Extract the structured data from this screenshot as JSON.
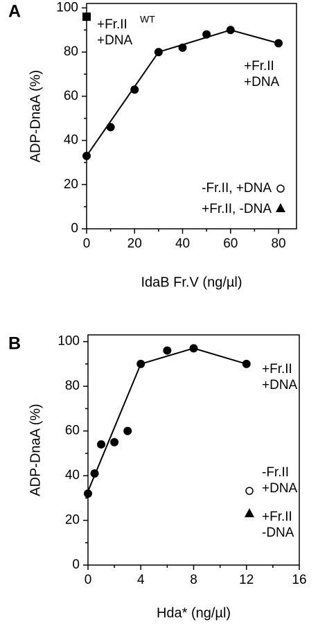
{
  "chart_data": [
    {
      "type": "line",
      "panel_label": "A",
      "ylabel": "ADP-DnaA (%)",
      "xlabel": "IdaB Fr.V (ng/µl)",
      "xlim": [
        0,
        87.5
      ],
      "ylim": [
        0,
        102
      ],
      "xticks": [
        0,
        20,
        40,
        60,
        80
      ],
      "xminorticks": [
        10,
        30,
        50,
        70
      ],
      "yticks": [
        0,
        20,
        40,
        60,
        80,
        100
      ],
      "yminorticks": [
        10,
        30,
        50,
        70,
        90
      ],
      "series": [
        {
          "style": "markers",
          "marker": "circle",
          "color": "#000000",
          "x": [
            0,
            10,
            20,
            30,
            40,
            50,
            60,
            80
          ],
          "values": [
            33,
            46,
            63,
            80,
            82,
            88,
            90,
            84
          ]
        },
        {
          "style": "line",
          "color": "#000000",
          "x": [
            0,
            30,
            60,
            80
          ],
          "values": [
            33,
            80,
            90,
            84
          ]
        },
        {
          "style": "markers",
          "marker": "square",
          "color": "#000000",
          "x": [
            0
          ],
          "values": [
            96
          ]
        }
      ],
      "annotations": [
        {
          "lines": [
            "+Fr.II",
            "+DNA"
          ],
          "superscript": "WT"
        },
        {
          "lines": [
            "+Fr.II",
            "+DNA"
          ]
        }
      ],
      "legend": [
        {
          "lines": [
            "-Fr.II, +DNA"
          ],
          "marker": "open-circle"
        },
        {
          "lines": [
            "+Fr.II, -DNA"
          ],
          "marker": "triangle"
        }
      ]
    },
    {
      "type": "line",
      "panel_label": "B",
      "ylabel": "ADP-DnaA (%)",
      "xlabel": "Hda* (ng/µl)",
      "xlim": [
        0,
        16
      ],
      "ylim": [
        0,
        103
      ],
      "xticks": [
        0,
        4,
        8,
        12,
        16
      ],
      "xminorticks": [
        2,
        6,
        10,
        14
      ],
      "yticks": [
        0,
        20,
        40,
        60,
        80,
        100
      ],
      "yminorticks": [
        10,
        30,
        50,
        70,
        90
      ],
      "series": [
        {
          "style": "markers",
          "marker": "circle",
          "color": "#000000",
          "x": [
            0,
            0.5,
            1,
            2,
            3,
            4,
            6,
            8,
            12
          ],
          "values": [
            32,
            41,
            54,
            55,
            60,
            90,
            96,
            97,
            90
          ]
        },
        {
          "style": "line",
          "color": "#000000",
          "x": [
            0,
            4,
            8,
            12
          ],
          "values": [
            33,
            90,
            97,
            90
          ]
        }
      ],
      "annotations": [
        {
          "lines": [
            "+Fr.II",
            "+DNA"
          ]
        }
      ],
      "legend": [
        {
          "lines": [
            "-Fr.II",
            "+DNA"
          ],
          "marker": "open-circle"
        },
        {
          "lines": [
            "+Fr.II",
            "-DNA"
          ],
          "marker": "triangle"
        }
      ]
    }
  ]
}
